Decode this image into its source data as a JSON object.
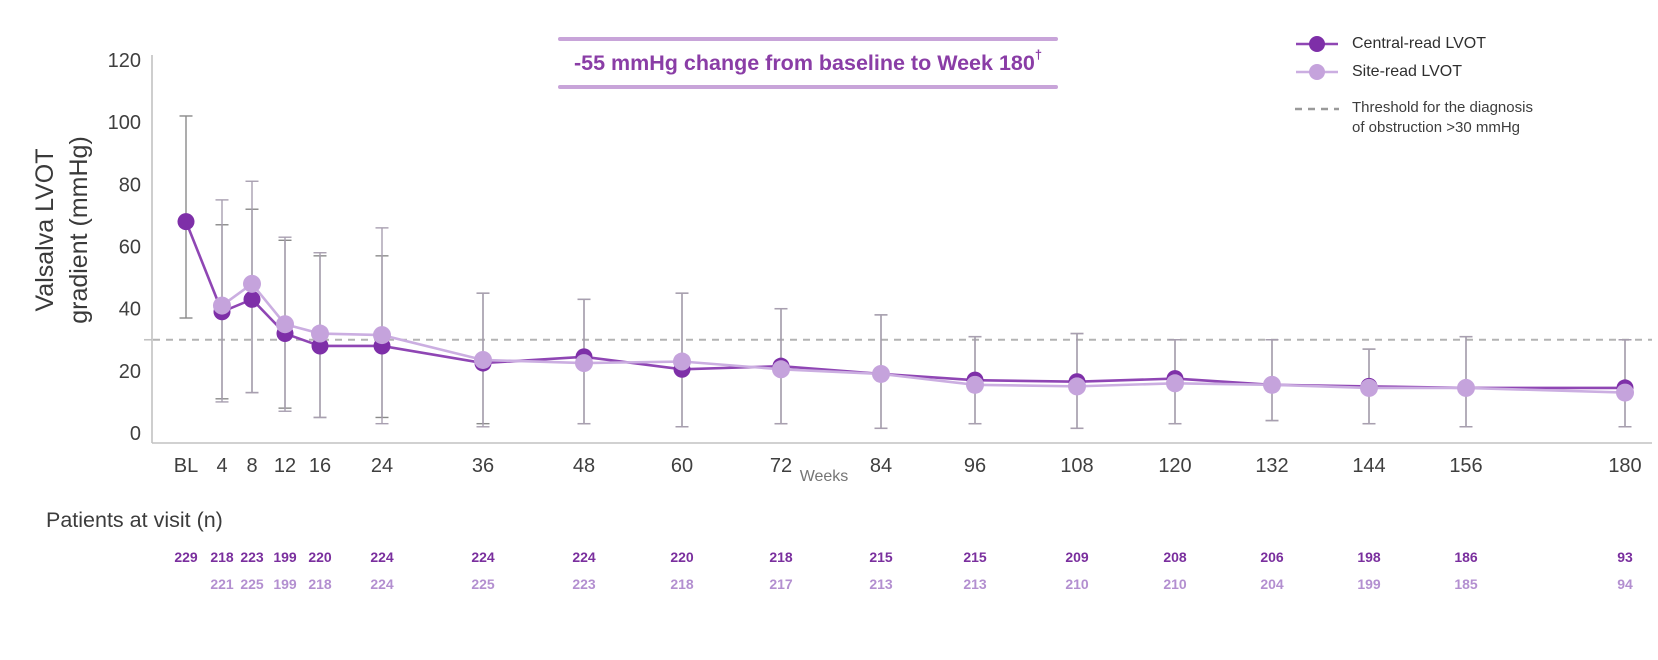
{
  "annotation": {
    "text": "-55 mmHg change from baseline to Week 180",
    "superscript": "†",
    "text_color": "#8a3da6",
    "rule_color": "#c8a4d9"
  },
  "y_axis_title": {
    "line1": "Valsalva LVOT",
    "line2": "gradient (mmHg)"
  },
  "legend": {
    "threshold_label_line1": "Threshold for the diagnosis",
    "threshold_label_line2": "of obstruction >30 mmHg"
  },
  "chart_data": {
    "type": "line",
    "title": "-55 mmHg change from baseline to Week 180†",
    "xlabel": "Weeks",
    "ylabel": "Valsalva LVOT gradient (mmHg)",
    "x_categories": [
      "BL",
      "4",
      "8",
      "12",
      "16",
      "24",
      "36",
      "48",
      "60",
      "72",
      "84",
      "96",
      "108",
      "120",
      "132",
      "144",
      "156",
      "180"
    ],
    "x_weeks": [
      0,
      4,
      8,
      12,
      16,
      24,
      36,
      48,
      60,
      72,
      84,
      96,
      108,
      120,
      132,
      144,
      156,
      180
    ],
    "ylim": [
      0,
      120
    ],
    "yticks": [
      0,
      20,
      40,
      60,
      80,
      100,
      120
    ],
    "grid": false,
    "legend_position": "top-right",
    "threshold_line": {
      "value": 30,
      "style": "dashed",
      "color": "#b3b3b3",
      "label": "Threshold for the diagnosis of obstruction >30 mmHg"
    },
    "series": [
      {
        "name": "Central-read LVOT",
        "color": "#7e2fa8",
        "line_color": "#8f46b4",
        "error_bar_color": "#8a8a8a",
        "values": [
          68,
          39,
          43,
          32,
          28,
          28,
          22.5,
          24.5,
          20.5,
          21.5,
          19,
          17,
          16.5,
          17.5,
          15.5,
          15,
          14.5,
          14.5
        ],
        "err_low": [
          37,
          11,
          13,
          8,
          5,
          5,
          3,
          3,
          2,
          3,
          1.5,
          3,
          1.5,
          3,
          4,
          3,
          2,
          2
        ],
        "err_high": [
          102,
          67,
          72,
          62,
          57,
          57,
          45,
          43,
          45,
          40,
          38,
          31,
          32,
          30,
          30,
          27,
          31,
          30
        ]
      },
      {
        "name": "Site-read LVOT",
        "color": "#c5a3dc",
        "line_color": "#cbaee1",
        "error_bar_color": "#a89fb0",
        "values": [
          null,
          41,
          48,
          35,
          32,
          31.5,
          23.5,
          22.5,
          23,
          20.5,
          19,
          15.5,
          15,
          16,
          15.5,
          14.5,
          14.5,
          13
        ],
        "err_low": [
          null,
          10,
          13,
          7,
          5,
          3,
          2,
          3,
          2,
          3,
          1.5,
          3,
          1.5,
          3,
          4,
          3,
          2,
          2
        ],
        "err_high": [
          null,
          75,
          81,
          63,
          58,
          66,
          45,
          43,
          45,
          40,
          38,
          31,
          32,
          30,
          30,
          27,
          31,
          30
        ]
      }
    ]
  },
  "patients": {
    "label": "Patients at visit (n)",
    "rows": [
      {
        "name": "central",
        "color": "#7a2f9e",
        "values": [
          "229",
          "218",
          "223",
          "199",
          "220",
          "224",
          "224",
          "224",
          "220",
          "218",
          "215",
          "215",
          "209",
          "208",
          "206",
          "198",
          "186",
          "93"
        ]
      },
      {
        "name": "site",
        "color": "#b38fd0",
        "values": [
          "",
          "221",
          "225",
          "199",
          "218",
          "224",
          "225",
          "223",
          "218",
          "217",
          "213",
          "213",
          "210",
          "210",
          "204",
          "199",
          "185",
          "94"
        ]
      }
    ]
  }
}
